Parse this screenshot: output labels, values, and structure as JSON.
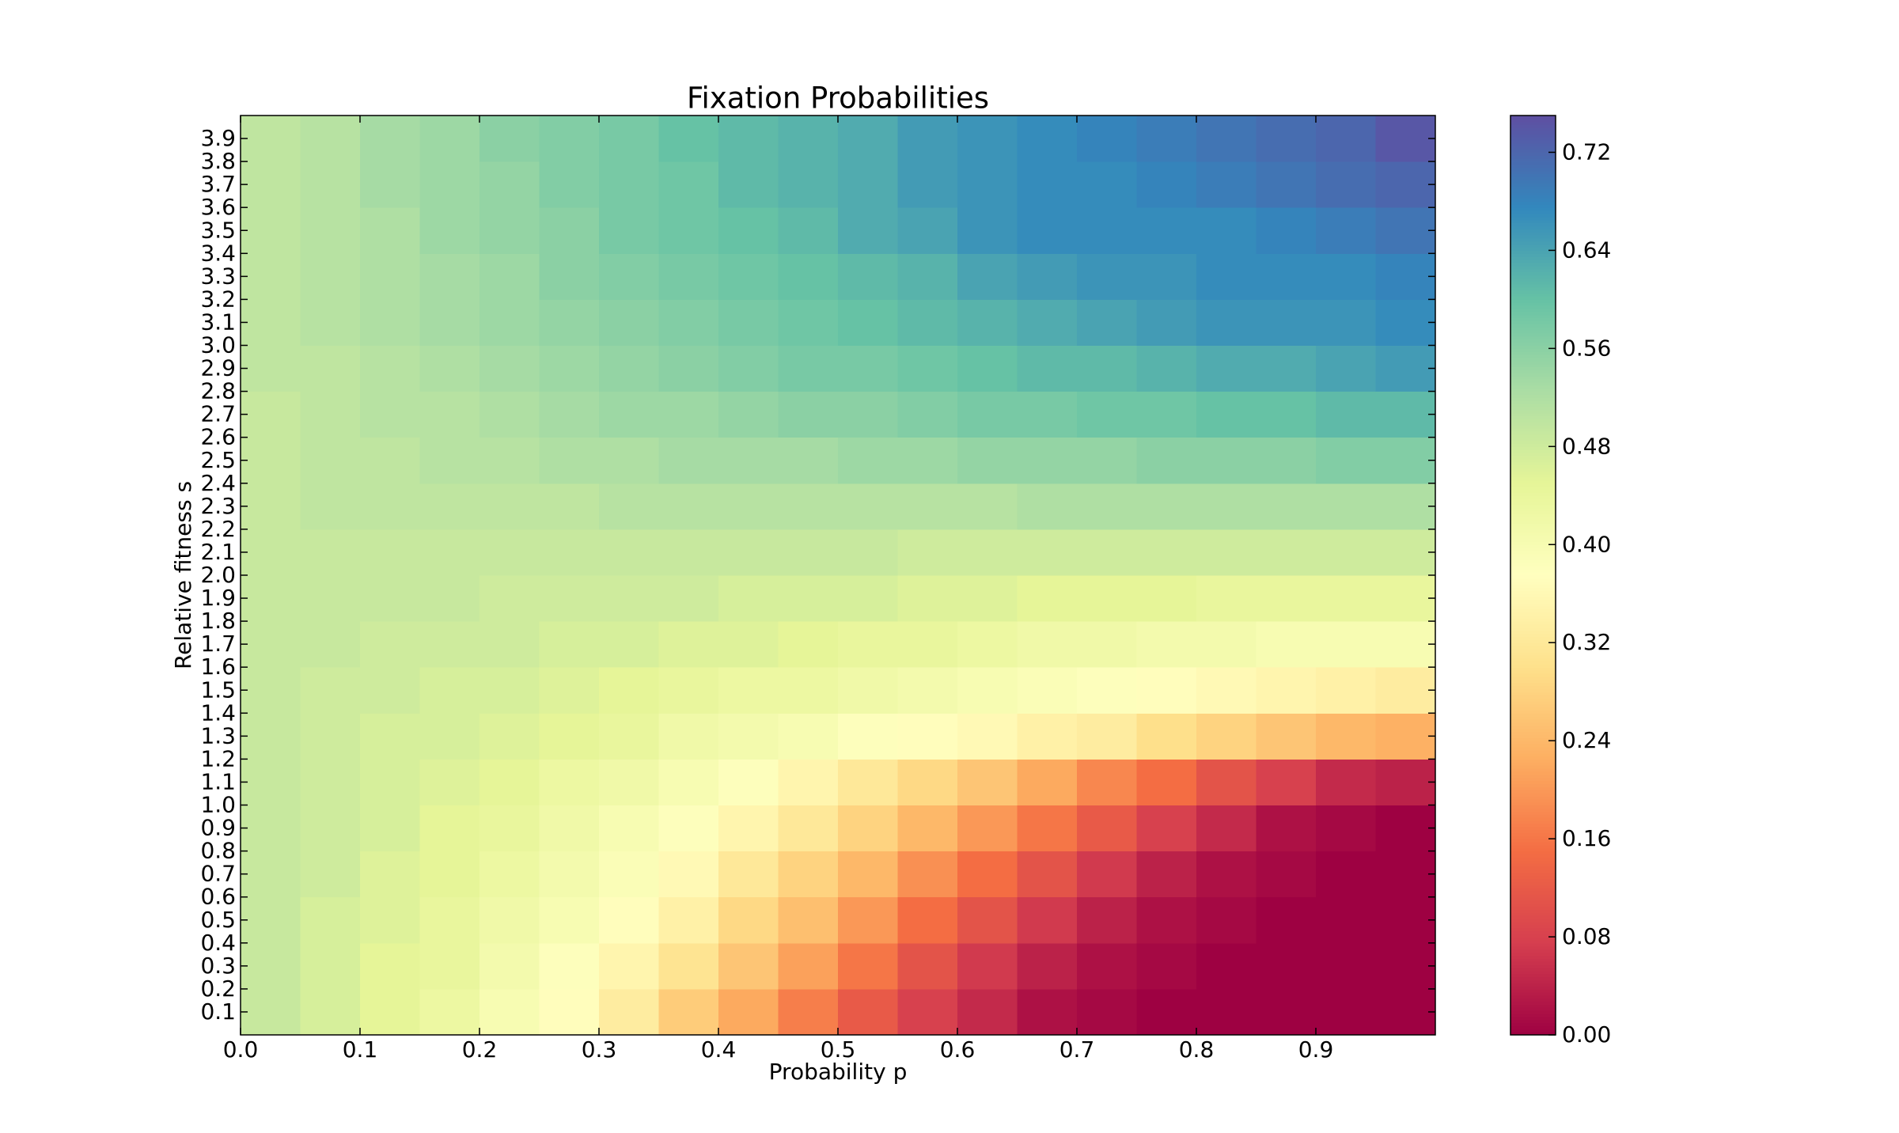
{
  "chart_data": {
    "type": "heatmap",
    "title": "Fixation Probabilities",
    "xlabel": "Probability p",
    "ylabel": "Relative fitness s",
    "xlim": [
      0,
      1
    ],
    "ylim": [
      0,
      4
    ],
    "xticks": [
      {
        "value": 0,
        "label": "0.0"
      },
      0.1,
      0.2,
      0.3,
      0.4,
      0.5,
      0.6,
      0.7,
      0.8,
      0.9
    ],
    "yticks": [
      0.1,
      0.2,
      0.3,
      0.4,
      0.5,
      0.6,
      0.7,
      0.8,
      0.9,
      {
        "value": 1,
        "label": "1.0"
      },
      1.1,
      1.2,
      1.3,
      1.4,
      1.5,
      1.6,
      1.7,
      1.8,
      1.9,
      {
        "value": 2,
        "label": "2.0"
      },
      2.1,
      2.2,
      2.3,
      2.4,
      2.5,
      2.6,
      2.7,
      2.8,
      2.9,
      {
        "value": 3,
        "label": "3.0"
      },
      3.1,
      3.2,
      3.3,
      3.4,
      3.5,
      3.6,
      3.7,
      3.8,
      3.9
    ],
    "xbins": [
      0,
      0.05,
      0.1,
      0.15,
      0.2,
      0.25,
      0.3,
      0.35,
      0.4,
      0.45,
      0.5,
      0.55,
      0.6,
      0.65,
      0.7,
      0.75,
      0.8,
      0.85,
      0.9,
      0.95,
      1
    ],
    "ybins": [
      0,
      0.2,
      0.4,
      0.6,
      0.8,
      1,
      1.2,
      1.4,
      1.6,
      1.8,
      2,
      2.2,
      2.4,
      2.6,
      2.8,
      3,
      3.2,
      3.4,
      3.6,
      3.8,
      4
    ],
    "z": [
      [
        0.49,
        0.47,
        0.45,
        0.43,
        0.4,
        0.37,
        0.33,
        0.27,
        0.22,
        0.17,
        0.12,
        0.08,
        0.05,
        0.02,
        0.01,
        0,
        0,
        0,
        0,
        0
      ],
      [
        0.49,
        0.47,
        0.45,
        0.44,
        0.41,
        0.38,
        0.35,
        0.31,
        0.26,
        0.21,
        0.16,
        0.11,
        0.07,
        0.04,
        0.02,
        0.01,
        0,
        0,
        0,
        0
      ],
      [
        0.49,
        0.47,
        0.46,
        0.44,
        0.42,
        0.4,
        0.37,
        0.34,
        0.29,
        0.25,
        0.2,
        0.15,
        0.11,
        0.07,
        0.04,
        0.02,
        0.01,
        0,
        0,
        0
      ],
      [
        0.49,
        0.48,
        0.46,
        0.45,
        0.43,
        0.41,
        0.39,
        0.36,
        0.32,
        0.28,
        0.24,
        0.19,
        0.15,
        0.11,
        0.07,
        0.04,
        0.02,
        0.01,
        0,
        0
      ],
      [
        0.49,
        0.48,
        0.47,
        0.45,
        0.44,
        0.42,
        0.4,
        0.38,
        0.35,
        0.32,
        0.28,
        0.24,
        0.2,
        0.16,
        0.12,
        0.08,
        0.05,
        0.02,
        0.01,
        0
      ],
      [
        0.49,
        0.48,
        0.47,
        0.46,
        0.45,
        0.43,
        0.42,
        0.4,
        0.38,
        0.35,
        0.32,
        0.29,
        0.26,
        0.22,
        0.18,
        0.15,
        0.11,
        0.08,
        0.05,
        0.04
      ],
      [
        0.49,
        0.48,
        0.47,
        0.47,
        0.46,
        0.45,
        0.44,
        0.42,
        0.41,
        0.4,
        0.38,
        0.37,
        0.36,
        0.34,
        0.33,
        0.3,
        0.28,
        0.26,
        0.24,
        0.23
      ],
      [
        0.49,
        0.48,
        0.48,
        0.47,
        0.47,
        0.46,
        0.45,
        0.44,
        0.43,
        0.43,
        0.42,
        0.41,
        0.4,
        0.39,
        0.38,
        0.37,
        0.36,
        0.35,
        0.34,
        0.33
      ],
      [
        0.49,
        0.49,
        0.48,
        0.48,
        0.48,
        0.47,
        0.47,
        0.46,
        0.46,
        0.45,
        0.44,
        0.44,
        0.43,
        0.42,
        0.42,
        0.41,
        0.41,
        0.4,
        0.4,
        0.4
      ],
      [
        0.49,
        0.49,
        0.49,
        0.49,
        0.48,
        0.48,
        0.48,
        0.48,
        0.47,
        0.47,
        0.47,
        0.46,
        0.46,
        0.45,
        0.45,
        0.45,
        0.44,
        0.44,
        0.44,
        0.44
      ],
      [
        0.49,
        0.49,
        0.49,
        0.49,
        0.49,
        0.49,
        0.49,
        0.49,
        0.49,
        0.49,
        0.49,
        0.48,
        0.48,
        0.48,
        0.48,
        0.48,
        0.48,
        0.48,
        0.48,
        0.48
      ],
      [
        0.49,
        0.5,
        0.5,
        0.5,
        0.5,
        0.5,
        0.51,
        0.51,
        0.51,
        0.51,
        0.51,
        0.51,
        0.51,
        0.52,
        0.52,
        0.52,
        0.52,
        0.52,
        0.52,
        0.52
      ],
      [
        0.49,
        0.5,
        0.5,
        0.51,
        0.51,
        0.52,
        0.52,
        0.53,
        0.53,
        0.53,
        0.54,
        0.54,
        0.55,
        0.55,
        0.55,
        0.56,
        0.56,
        0.56,
        0.57,
        0.57
      ],
      [
        0.49,
        0.5,
        0.51,
        0.51,
        0.52,
        0.53,
        0.54,
        0.54,
        0.55,
        0.56,
        0.56,
        0.57,
        0.58,
        0.58,
        0.59,
        0.59,
        0.6,
        0.6,
        0.61,
        0.61
      ],
      [
        0.5,
        0.5,
        0.51,
        0.52,
        0.53,
        0.54,
        0.55,
        0.56,
        0.57,
        0.58,
        0.58,
        0.59,
        0.6,
        0.61,
        0.61,
        0.62,
        0.63,
        0.63,
        0.64,
        0.65
      ],
      [
        0.5,
        0.51,
        0.52,
        0.53,
        0.54,
        0.55,
        0.56,
        0.57,
        0.58,
        0.59,
        0.6,
        0.61,
        0.62,
        0.63,
        0.64,
        0.65,
        0.66,
        0.66,
        0.66,
        0.67
      ],
      [
        0.5,
        0.51,
        0.52,
        0.53,
        0.54,
        0.56,
        0.57,
        0.58,
        0.59,
        0.6,
        0.61,
        0.62,
        0.64,
        0.65,
        0.66,
        0.66,
        0.67,
        0.67,
        0.67,
        0.68
      ],
      [
        0.5,
        0.51,
        0.52,
        0.54,
        0.55,
        0.56,
        0.58,
        0.59,
        0.6,
        0.61,
        0.63,
        0.64,
        0.66,
        0.67,
        0.67,
        0.67,
        0.67,
        0.68,
        0.69,
        0.7
      ],
      [
        0.5,
        0.51,
        0.53,
        0.54,
        0.55,
        0.57,
        0.58,
        0.59,
        0.61,
        0.62,
        0.63,
        0.65,
        0.66,
        0.67,
        0.67,
        0.68,
        0.69,
        0.7,
        0.71,
        0.72
      ],
      [
        0.5,
        0.51,
        0.53,
        0.54,
        0.56,
        0.57,
        0.58,
        0.6,
        0.61,
        0.62,
        0.63,
        0.65,
        0.66,
        0.67,
        0.68,
        0.69,
        0.7,
        0.71,
        0.72,
        0.74
      ]
    ],
    "colormap": [
      "#9e0142",
      "#d53e4f",
      "#f46d43",
      "#fdae61",
      "#fee08b",
      "#ffffbf",
      "#e6f598",
      "#abdda4",
      "#66c2a5",
      "#3288bd",
      "#5e4fa2"
    ],
    "colorbar": {
      "lim": [
        0,
        0.75
      ],
      "ticks": [
        {
          "value": 0,
          "label": "0.00"
        },
        0.08,
        0.16,
        0.24,
        0.32,
        {
          "value": 0.4,
          "label": "0.40"
        },
        0.48,
        0.56,
        0.64,
        0.72
      ]
    }
  }
}
